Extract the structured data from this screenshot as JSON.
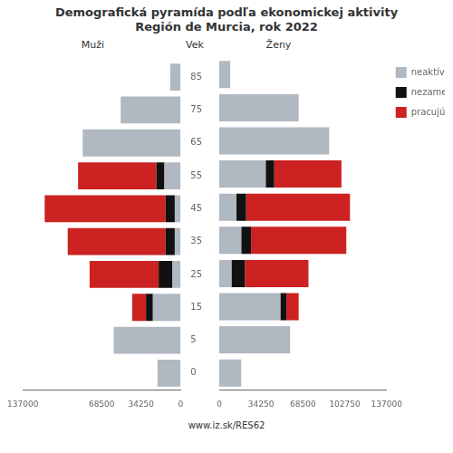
{
  "chart_data": [
    {
      "type": "bar",
      "orientation": "horizontal",
      "stacked": true,
      "title": "Demografická pyramída podľa ekonomickej aktivity",
      "subtitle": "Región de Murcia, rok 2022",
      "y_label": "Vek",
      "annotations": [
        "Muži",
        "www.iz.sk/RES62"
      ],
      "categories": [
        "0",
        "5",
        "15",
        "25",
        "35",
        "45",
        "55",
        "65",
        "75",
        "85"
      ],
      "series": [
        {
          "name": "neaktívni",
          "color": "#b0b8c1",
          "values": [
            20000,
            58000,
            24000,
            7000,
            5000,
            5000,
            14000,
            85000,
            52000,
            9000
          ]
        },
        {
          "name": "nezamestnaní",
          "color": "#111111",
          "values": [
            0,
            0,
            6000,
            12000,
            8000,
            8000,
            7000,
            0,
            0,
            0
          ]
        },
        {
          "name": "pracujúci",
          "color": "#cc2222",
          "values": [
            0,
            0,
            12000,
            60000,
            85000,
            105000,
            68000,
            0,
            0,
            0
          ]
        }
      ],
      "xlim": [
        137000,
        0
      ],
      "xticks": [
        137000,
        68500,
        34250,
        0
      ]
    },
    {
      "type": "bar",
      "orientation": "horizontal",
      "stacked": true,
      "annotations": [
        "Ženy"
      ],
      "categories": [
        "0",
        "5",
        "15",
        "25",
        "35",
        "45",
        "55",
        "65",
        "75",
        "85"
      ],
      "series": [
        {
          "name": "neaktívni",
          "color": "#b0b8c1",
          "values": [
            18000,
            58000,
            50000,
            10000,
            18000,
            14000,
            38000,
            90000,
            65000,
            9000
          ]
        },
        {
          "name": "nezamestnaní",
          "color": "#111111",
          "values": [
            0,
            0,
            5000,
            11000,
            8000,
            8000,
            7000,
            0,
            0,
            0
          ]
        },
        {
          "name": "pracujúci",
          "color": "#cc2222",
          "values": [
            0,
            0,
            10000,
            52000,
            78000,
            85000,
            55000,
            0,
            0,
            0
          ]
        }
      ],
      "xlim": [
        0,
        137000
      ],
      "xticks": [
        0,
        34250,
        68500,
        102750,
        137000
      ],
      "tick_labels": "x",
      "legend": "upper right"
    }
  ]
}
